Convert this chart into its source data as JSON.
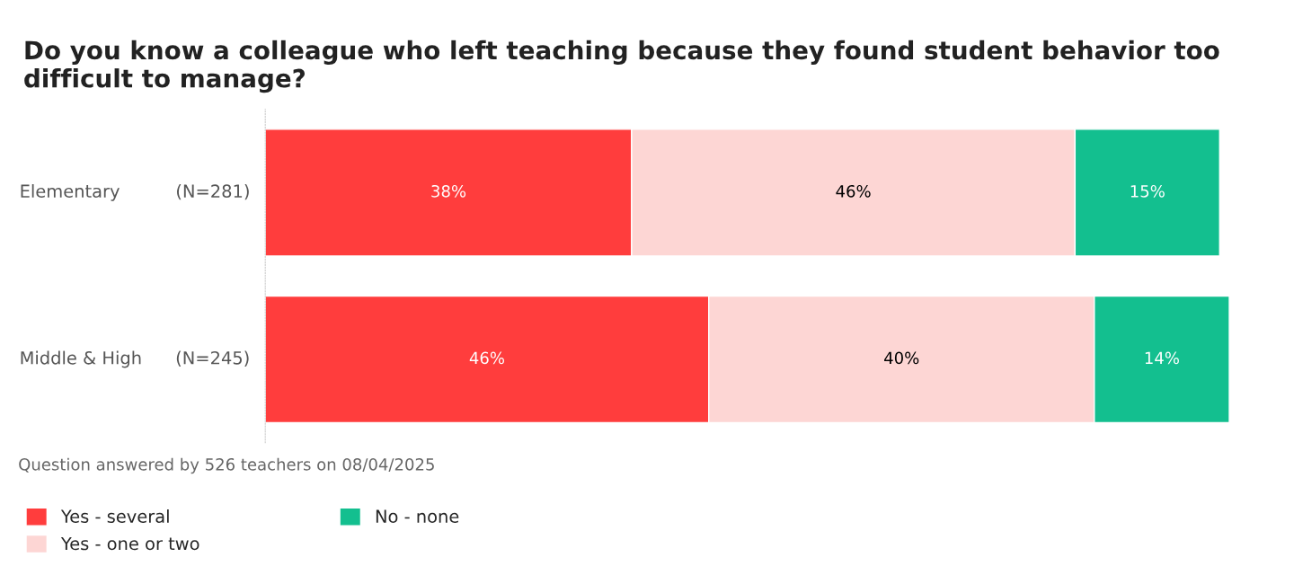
{
  "chart_data": {
    "type": "bar",
    "orientation": "horizontal",
    "stacked": true,
    "title": "Do you know a colleague who left teaching because they found student behavior too difficult to manage?",
    "categories": [
      "Elementary          (N=281)",
      "Middle & High      (N=245)"
    ],
    "series": [
      {
        "name": "Yes - several",
        "color": "#ff3d3d",
        "values": [
          38,
          46
        ],
        "value_labels": [
          "38%",
          "46%"
        ]
      },
      {
        "name": "Yes - one or two",
        "color": "#fdd6d4",
        "values": [
          46,
          40
        ],
        "value_labels": [
          "46%",
          "40%"
        ]
      },
      {
        "name": "No - none",
        "color": "#13bf8f",
        "values": [
          15,
          14
        ],
        "value_labels": [
          "15%",
          "14%"
        ]
      }
    ],
    "legend": "bottom",
    "annotations": [
      "Question answered by 526 teachers on 08/04/2025"
    ]
  }
}
